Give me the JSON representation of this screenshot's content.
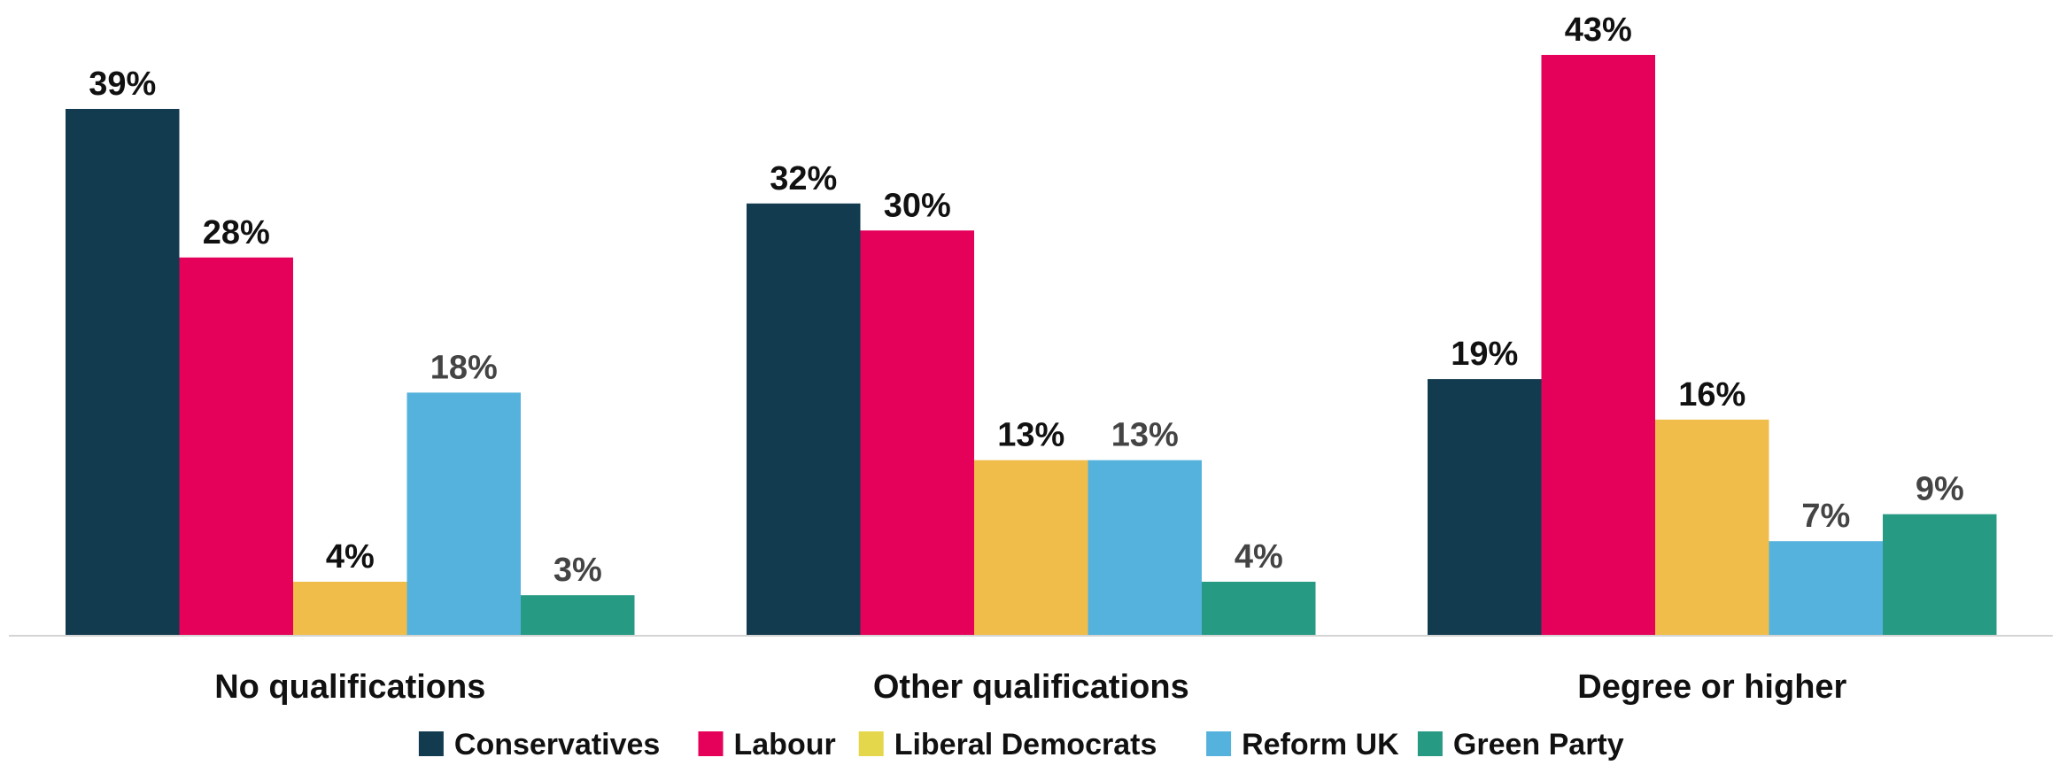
{
  "chart_data": {
    "type": "bar",
    "title": "",
    "xlabel": "",
    "ylabel": "",
    "ylim": [
      0,
      45
    ],
    "grid": false,
    "legend_position": "bottom",
    "categories": [
      "No qualifications",
      "Other qualifications",
      "Degree or higher"
    ],
    "value_suffix": "%",
    "series": [
      {
        "name": "Conservatives",
        "color": "#133b4f",
        "label_color": "#111111",
        "values": [
          39,
          32,
          19
        ]
      },
      {
        "name": "Labour",
        "color": "#e5005a",
        "label_color": "#111111",
        "values": [
          28,
          30,
          43
        ]
      },
      {
        "name": "Liberal Democrats",
        "color": "#f0bd4a",
        "legend_color": "#e5d74b",
        "label_color": "#111111",
        "values": [
          4,
          13,
          16
        ]
      },
      {
        "name": "Reform UK",
        "color": "#55b2dc",
        "label_color": "#444444",
        "values": [
          18,
          13,
          7
        ]
      },
      {
        "name": "Green Party",
        "color": "#279a84",
        "label_color": "#444444",
        "values": [
          3,
          4,
          9
        ]
      }
    ]
  }
}
